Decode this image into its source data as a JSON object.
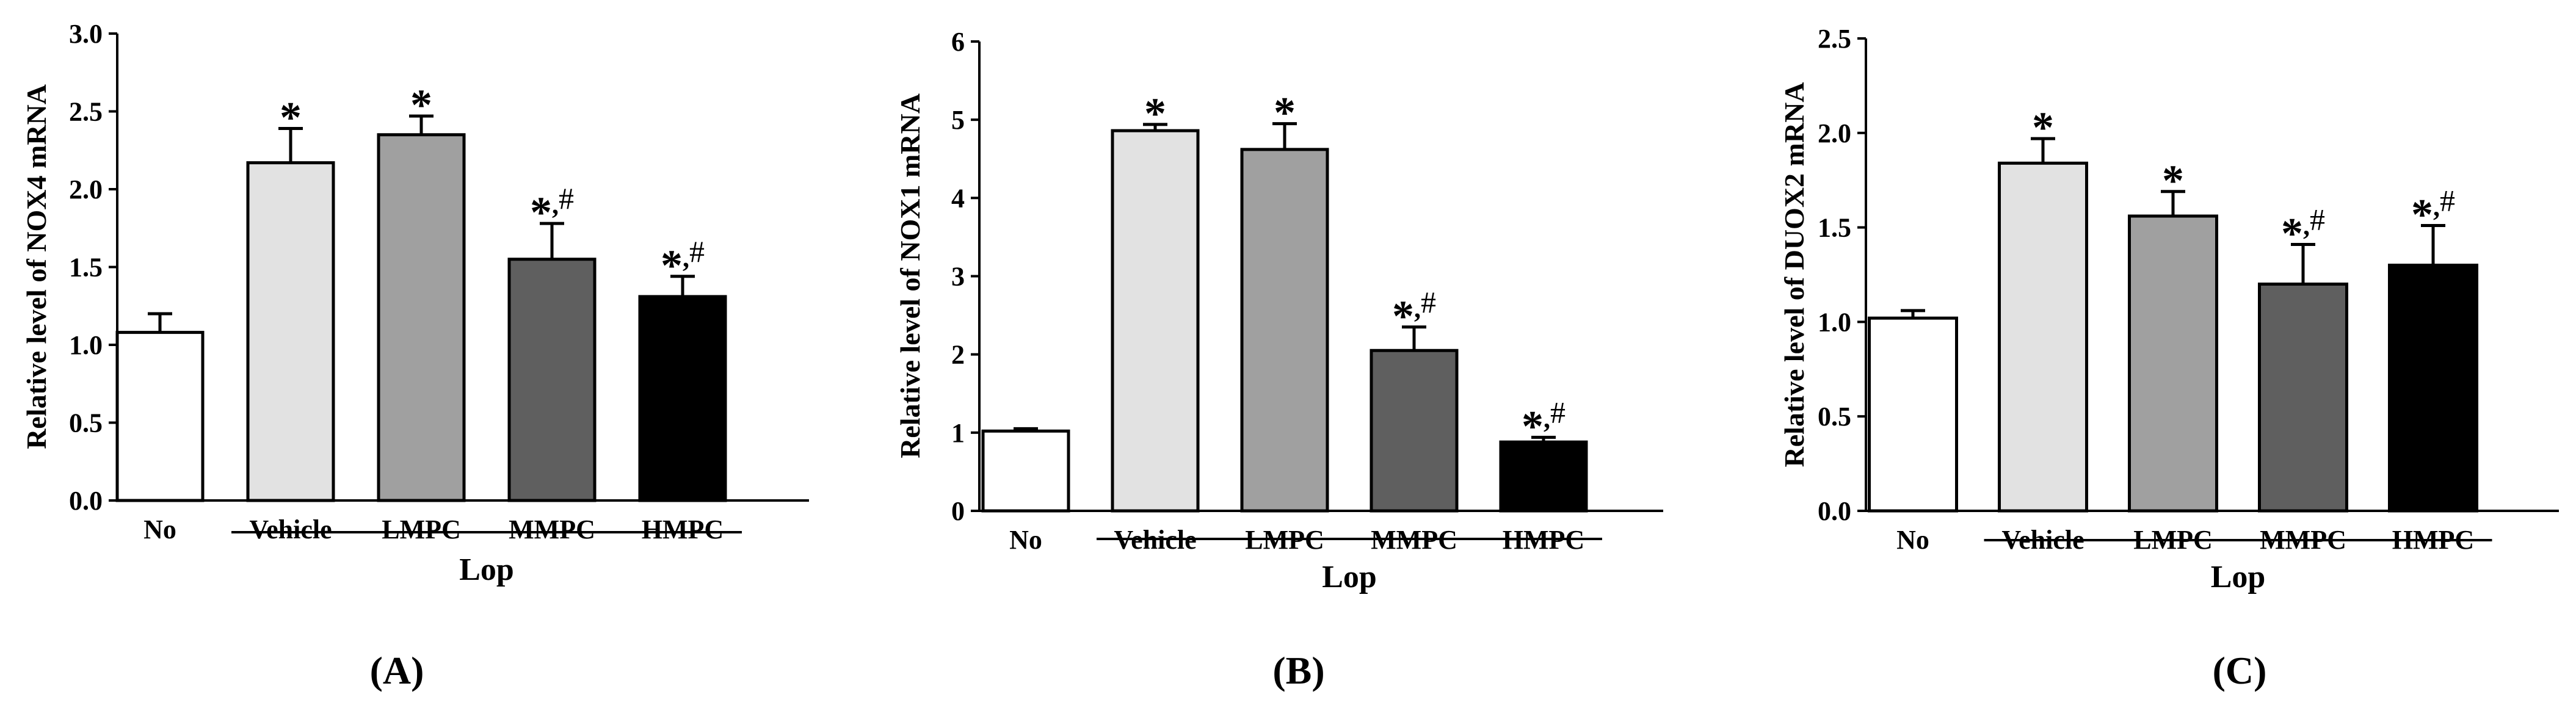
{
  "chart_data": [
    {
      "type": "bar",
      "panel_label": "(A)",
      "categories": [
        "No",
        "Vehicle",
        "LMPC",
        "MMPC",
        "HMPC"
      ],
      "values": [
        1.08,
        2.17,
        2.35,
        1.55,
        1.31
      ],
      "errors": [
        0.12,
        0.22,
        0.12,
        0.23,
        0.13
      ],
      "annotations": [
        "",
        "*",
        "*",
        "*,#",
        "*,#"
      ],
      "colors": [
        "#ffffff",
        "#e2e2e2",
        "#a0a0a0",
        "#5f5f5f",
        "#000000"
      ],
      "ylabel": "Relative level of NOX4 mRNA",
      "group_label": "Lop",
      "group_categories": [
        "Vehicle",
        "LMPC",
        "MMPC",
        "HMPC"
      ],
      "ylim": [
        0,
        3.0
      ],
      "yticks": [
        "0.0",
        "0.5",
        "1.0",
        "1.5",
        "2.0",
        "2.5",
        "3.0"
      ]
    },
    {
      "type": "bar",
      "panel_label": "(B)",
      "categories": [
        "No",
        "Vehicle",
        "LMPC",
        "MMPC",
        "HMPC"
      ],
      "values": [
        1.02,
        4.86,
        4.62,
        2.05,
        0.88
      ],
      "errors": [
        0.03,
        0.08,
        0.33,
        0.3,
        0.06
      ],
      "annotations": [
        "",
        "*",
        "*",
        "*,#",
        "*,#"
      ],
      "colors": [
        "#ffffff",
        "#e2e2e2",
        "#a0a0a0",
        "#5f5f5f",
        "#000000"
      ],
      "ylabel": "Relative level of NOX1 mRNA",
      "group_label": "Lop",
      "group_categories": [
        "Vehicle",
        "LMPC",
        "MMPC",
        "HMPC"
      ],
      "ylim": [
        0,
        6
      ],
      "yticks": [
        "0",
        "1",
        "2",
        "3",
        "4",
        "5",
        "6"
      ]
    },
    {
      "type": "bar",
      "panel_label": "(C)",
      "categories": [
        "No",
        "Vehicle",
        "LMPC",
        "MMPC",
        "HMPC"
      ],
      "values": [
        1.02,
        1.84,
        1.56,
        1.2,
        1.3
      ],
      "errors": [
        0.04,
        0.13,
        0.13,
        0.21,
        0.21
      ],
      "annotations": [
        "",
        "*",
        "*",
        "*,#",
        "*,#"
      ],
      "colors": [
        "#ffffff",
        "#e2e2e2",
        "#a0a0a0",
        "#5f5f5f",
        "#000000"
      ],
      "ylabel": "Relative level of DUOX2 mRNA",
      "group_label": "Lop",
      "group_categories": [
        "Vehicle",
        "LMPC",
        "MMPC",
        "HMPC"
      ],
      "ylim": [
        0,
        2.5
      ],
      "yticks": [
        "0.0",
        "0.5",
        "1.0",
        "1.5",
        "2.0",
        "2.5"
      ]
    }
  ]
}
